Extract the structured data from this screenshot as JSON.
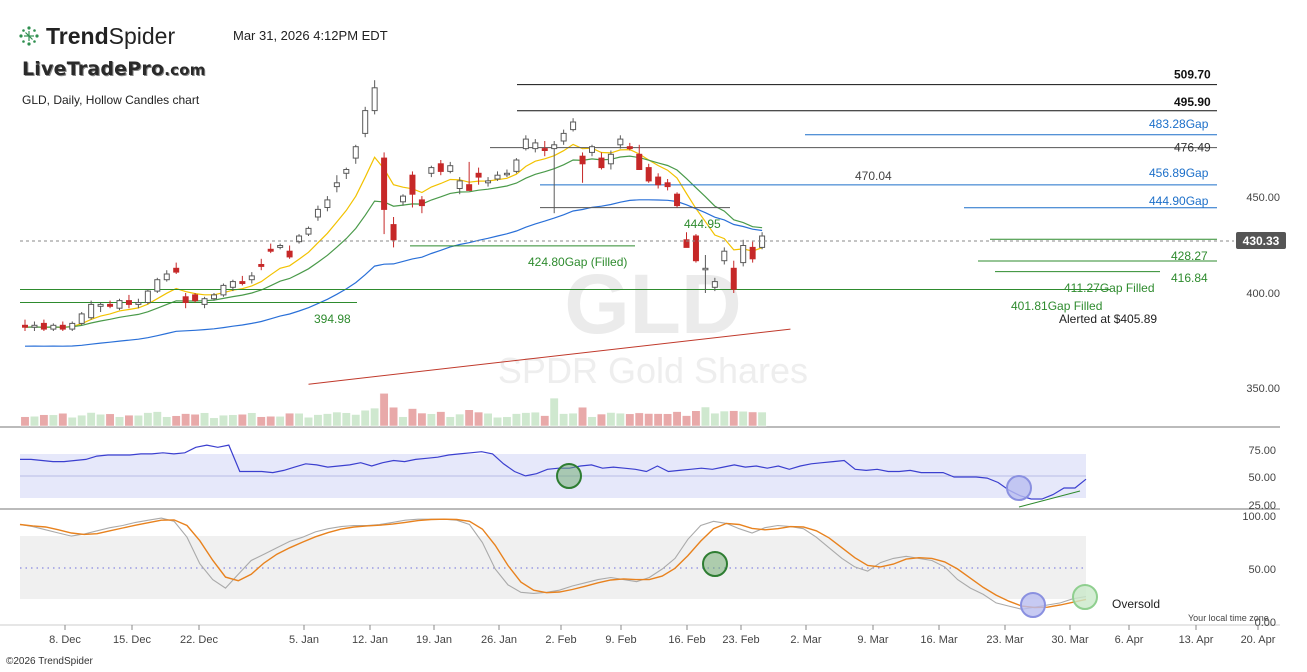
{
  "header": {
    "brand_name_bold": "Trend",
    "brand_name_rest": "Spider",
    "datetime": "Mar 31, 2026 4:12PM EDT",
    "logo2_main": "LiveTradePro",
    "logo2_domain": ".com",
    "chart_title": "GLD, Daily, Hollow Candles chart",
    "copyright": "©2026 TrendSpider",
    "timezone_label": "Your local time zone"
  },
  "watermark": {
    "ticker": "GLD",
    "name": "SPDR Gold Shares"
  },
  "colors": {
    "up": "#5a5a5a",
    "down": "#c62828",
    "ema_fast": "#f2c200",
    "ema_mid": "#4a9a4a",
    "ema_slow": "#2a70d8",
    "sma_long": "#c0392b",
    "rsi": "#3b3fcf",
    "stoch_k": "#e8821e",
    "stoch_d": "#aaaaaa",
    "gap_blue": "#1c6fc9",
    "gap_green": "#2e8b2e",
    "price_badge": "#555555"
  },
  "chart_data": {
    "type": "candlestick",
    "symbol": "GLD",
    "timeframe": "Daily",
    "style": "Hollow Candles",
    "last_price": "430.33",
    "y_ticks": [
      "450.00",
      "400.00",
      "350.00"
    ],
    "ylim": [
      330,
      520
    ],
    "x_ticks": [
      "8. Dec",
      "15. Dec",
      "22. Dec",
      "5. Jan",
      "12. Jan",
      "19. Jan",
      "26. Jan",
      "2. Feb",
      "9. Feb",
      "16. Feb",
      "23. Feb",
      "2. Mar",
      "9. Mar",
      "16. Mar",
      "23. Mar",
      "30. Mar",
      "6. Apr",
      "13. Apr",
      "20. Apr"
    ],
    "candles": [
      {
        "o": 383,
        "h": 386,
        "l": 380,
        "c": 382
      },
      {
        "o": 382,
        "h": 385,
        "l": 380,
        "c": 383
      },
      {
        "o": 384,
        "h": 386,
        "l": 380,
        "c": 381
      },
      {
        "o": 381,
        "h": 384,
        "l": 380,
        "c": 383
      },
      {
        "o": 383,
        "h": 385,
        "l": 380,
        "c": 381
      },
      {
        "o": 381,
        "h": 385,
        "l": 380,
        "c": 384
      },
      {
        "o": 384,
        "h": 390,
        "l": 383,
        "c": 389
      },
      {
        "o": 387,
        "h": 396,
        "l": 386,
        "c": 394
      },
      {
        "o": 393,
        "h": 395,
        "l": 390,
        "c": 394
      },
      {
        "o": 394,
        "h": 396,
        "l": 392,
        "c": 393
      },
      {
        "o": 392,
        "h": 397,
        "l": 391,
        "c": 396
      },
      {
        "o": 396,
        "h": 399,
        "l": 392,
        "c": 394
      },
      {
        "o": 394,
        "h": 397,
        "l": 392,
        "c": 395
      },
      {
        "o": 395,
        "h": 402,
        "l": 394,
        "c": 401
      },
      {
        "o": 401,
        "h": 408,
        "l": 400,
        "c": 407
      },
      {
        "o": 407,
        "h": 412,
        "l": 406,
        "c": 410
      },
      {
        "o": 413,
        "h": 416,
        "l": 410,
        "c": 411
      },
      {
        "o": 398,
        "h": 400,
        "l": 392,
        "c": 395
      },
      {
        "o": 399,
        "h": 400,
        "l": 395,
        "c": 396
      },
      {
        "o": 394,
        "h": 398,
        "l": 392,
        "c": 397
      },
      {
        "o": 397,
        "h": 400,
        "l": 396,
        "c": 399
      },
      {
        "o": 399,
        "h": 405,
        "l": 398,
        "c": 404
      },
      {
        "o": 403,
        "h": 407,
        "l": 401,
        "c": 406
      },
      {
        "o": 406,
        "h": 409,
        "l": 404,
        "c": 405
      },
      {
        "o": 407,
        "h": 411,
        "l": 405,
        "c": 409
      },
      {
        "o": 415,
        "h": 418,
        "l": 412,
        "c": 414
      },
      {
        "o": 423,
        "h": 426,
        "l": 421,
        "c": 422
      },
      {
        "o": 424,
        "h": 426,
        "l": 423,
        "c": 425
      },
      {
        "o": 422,
        "h": 425,
        "l": 418,
        "c": 419
      },
      {
        "o": 427,
        "h": 431,
        "l": 426,
        "c": 430
      },
      {
        "o": 431,
        "h": 435,
        "l": 430,
        "c": 434
      },
      {
        "o": 440,
        "h": 446,
        "l": 438,
        "c": 444
      },
      {
        "o": 445,
        "h": 451,
        "l": 443,
        "c": 449
      },
      {
        "o": 456,
        "h": 462,
        "l": 453,
        "c": 458
      },
      {
        "o": 463,
        "h": 466,
        "l": 460,
        "c": 465
      },
      {
        "o": 471,
        "h": 478,
        "l": 468,
        "c": 477
      },
      {
        "o": 484,
        "h": 498,
        "l": 482,
        "c": 496
      },
      {
        "o": 496,
        "h": 512,
        "l": 494,
        "c": 508
      },
      {
        "o": 471,
        "h": 474,
        "l": 431,
        "c": 444
      },
      {
        "o": 436,
        "h": 440,
        "l": 424,
        "c": 428
      },
      {
        "o": 448,
        "h": 452,
        "l": 446,
        "c": 451
      },
      {
        "o": 462,
        "h": 464,
        "l": 445,
        "c": 452
      },
      {
        "o": 449,
        "h": 451,
        "l": 442,
        "c": 446
      },
      {
        "o": 463,
        "h": 467,
        "l": 461,
        "c": 466
      },
      {
        "o": 468,
        "h": 470,
        "l": 462,
        "c": 464
      },
      {
        "o": 464,
        "h": 469,
        "l": 463,
        "c": 467
      },
      {
        "o": 455,
        "h": 461,
        "l": 452,
        "c": 459
      },
      {
        "o": 457,
        "h": 469,
        "l": 454,
        "c": 454
      },
      {
        "o": 463,
        "h": 466,
        "l": 457,
        "c": 461
      },
      {
        "o": 458,
        "h": 461,
        "l": 456,
        "c": 459
      },
      {
        "o": 460,
        "h": 464,
        "l": 459,
        "c": 462
      },
      {
        "o": 463,
        "h": 465,
        "l": 461,
        "c": 463
      },
      {
        "o": 464,
        "h": 471,
        "l": 463,
        "c": 470
      },
      {
        "o": 476,
        "h": 483,
        "l": 475,
        "c": 481
      },
      {
        "o": 476,
        "h": 481,
        "l": 474,
        "c": 479
      },
      {
        "o": 476,
        "h": 480,
        "l": 472,
        "c": 475
      },
      {
        "o": 476,
        "h": 480,
        "l": 442,
        "c": 478
      },
      {
        "o": 480,
        "h": 486,
        "l": 478,
        "c": 484
      },
      {
        "o": 486,
        "h": 492,
        "l": 485,
        "c": 490
      },
      {
        "o": 472,
        "h": 474,
        "l": 458,
        "c": 468
      },
      {
        "o": 474,
        "h": 478,
        "l": 472,
        "c": 477
      },
      {
        "o": 471,
        "h": 474,
        "l": 465,
        "c": 466
      },
      {
        "o": 468,
        "h": 475,
        "l": 465,
        "c": 473
      },
      {
        "o": 478,
        "h": 483,
        "l": 476,
        "c": 481
      },
      {
        "o": 477,
        "h": 479,
        "l": 475,
        "c": 476
      },
      {
        "o": 473,
        "h": 478,
        "l": 465,
        "c": 465
      },
      {
        "o": 466,
        "h": 468,
        "l": 458,
        "c": 459
      },
      {
        "o": 461,
        "h": 463,
        "l": 455,
        "c": 457
      },
      {
        "o": 458,
        "h": 460,
        "l": 454,
        "c": 456
      },
      {
        "o": 452,
        "h": 453,
        "l": 445,
        "c": 446
      },
      {
        "o": 428,
        "h": 432,
        "l": 424,
        "c": 424
      },
      {
        "o": 430,
        "h": 431,
        "l": 416,
        "c": 417
      },
      {
        "o": 413,
        "h": 420,
        "l": 400,
        "c": 413
      },
      {
        "o": 403,
        "h": 408,
        "l": 401,
        "c": 406
      },
      {
        "o": 417,
        "h": 424,
        "l": 415,
        "c": 422
      },
      {
        "o": 413,
        "h": 417,
        "l": 400,
        "c": 402
      },
      {
        "o": 416,
        "h": 428,
        "l": 414,
        "c": 425
      },
      {
        "o": 424,
        "h": 427,
        "l": 416,
        "c": 418
      },
      {
        "o": 424,
        "h": 432,
        "l": 423,
        "c": 430
      }
    ],
    "levels": [
      {
        "value": "509.70",
        "type": "black"
      },
      {
        "value": "495.90",
        "type": "black"
      },
      {
        "value": "483.28",
        "suffix": "Gap",
        "type": "blue"
      },
      {
        "value": "476.49",
        "type": "grey"
      },
      {
        "value": "470.04",
        "type": "grey-inline"
      },
      {
        "value": "456.89",
        "suffix": "Gap",
        "type": "blue"
      },
      {
        "value": "444.95",
        "type": "green-inline"
      },
      {
        "value": "444.90",
        "suffix": "Gap",
        "type": "blue"
      },
      {
        "value": "428.27",
        "type": "green"
      },
      {
        "value": "424.80",
        "suffix": "Gap (Filled)",
        "type": "green-inline"
      },
      {
        "value": "416.84",
        "type": "green"
      },
      {
        "value": "411.27",
        "suffix": "Gap Filled",
        "type": "green-inline"
      },
      {
        "value": "401.81",
        "suffix": "Gap Filled",
        "type": "green-inline"
      },
      {
        "value": "394.98",
        "type": "green-inline"
      }
    ],
    "annotations": {
      "alert": "Alerted at $405.89",
      "oversold": "Oversold"
    },
    "rsi": {
      "ticks": [
        "75.00",
        "50.00",
        "25.00"
      ],
      "values": [
        66,
        66,
        65,
        64,
        64,
        65,
        66,
        69,
        70,
        70,
        70,
        71,
        71,
        72,
        71,
        72,
        77,
        79,
        77,
        79,
        55,
        55,
        55,
        54,
        56,
        59,
        62,
        61,
        59,
        60,
        61,
        63,
        60,
        63,
        65,
        64,
        66,
        67,
        68,
        70,
        71,
        72,
        73,
        71,
        62,
        55,
        51,
        53,
        57,
        58,
        58,
        60,
        61,
        58,
        59,
        58,
        57,
        55,
        60,
        55,
        56,
        57,
        58,
        57,
        59,
        61,
        59,
        60,
        58,
        60,
        57,
        60,
        62,
        63,
        64,
        65,
        57,
        56,
        57,
        55,
        55,
        56,
        54,
        54,
        54,
        50,
        50,
        50,
        49,
        45,
        38,
        33,
        30,
        30,
        34,
        40,
        40,
        48
      ]
    },
    "stochastic": {
      "ticks": [
        "100.00",
        "50.00",
        "0.00"
      ],
      "k": [
        92,
        90,
        87,
        84,
        81,
        83,
        86,
        89,
        91,
        94,
        96,
        98,
        95,
        80,
        55,
        40,
        32,
        45,
        58,
        64,
        70,
        76,
        80,
        85,
        88,
        90,
        91,
        91,
        92,
        94,
        96,
        97,
        97,
        97,
        96,
        92,
        75,
        50,
        35,
        28,
        27,
        28,
        30,
        34,
        37,
        40,
        42,
        40,
        38,
        42,
        50,
        60,
        78,
        91,
        95,
        93,
        88,
        84,
        89,
        91,
        90,
        88,
        80,
        70,
        60,
        52,
        48,
        56,
        60,
        62,
        60,
        58,
        52,
        40,
        32,
        26,
        18,
        15,
        12,
        14,
        16,
        18,
        22,
        24
      ]
    }
  }
}
